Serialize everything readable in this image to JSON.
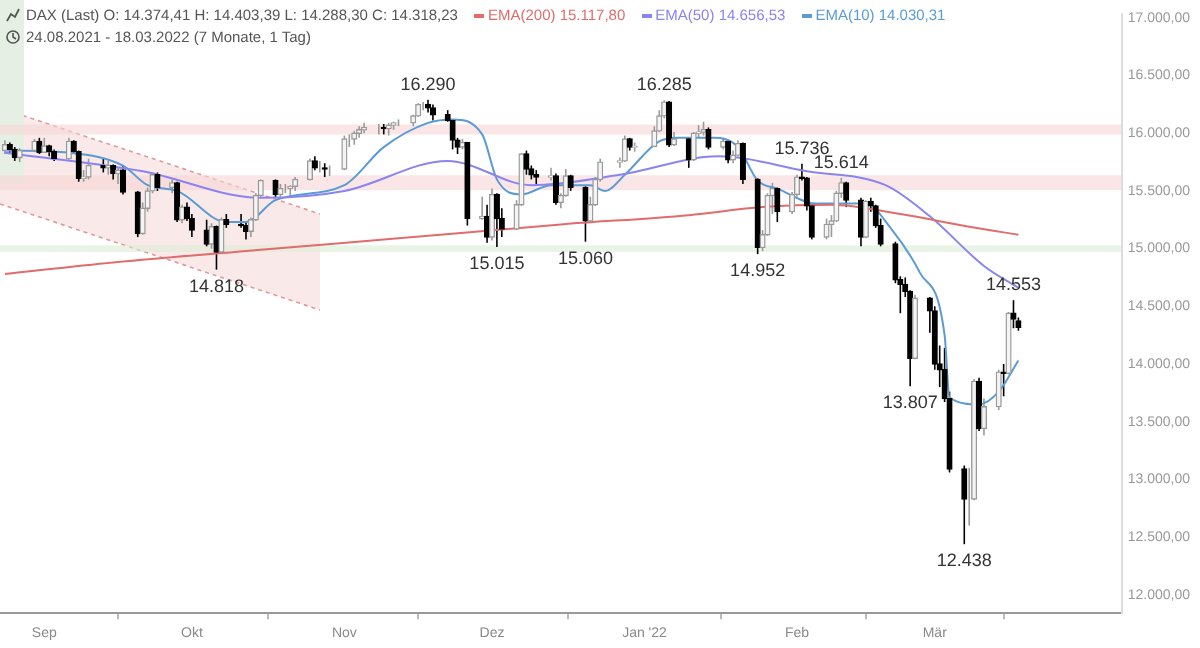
{
  "chart_data": {
    "type": "candlestick",
    "title": "DAX (Last)  O: 14.374,41  H: 14.403,39  L: 14.288,30  C: 14.318,23",
    "subtitle": "24.08.2021 - 18.03.2022   (7 Monate, 1 Tag)",
    "legend": "top",
    "x": [
      "2021-08-24",
      "2021-08-25",
      "2021-08-26",
      "2021-08-27",
      "2021-08-30",
      "2021-08-31",
      "2021-09-01",
      "2021-09-02",
      "2021-09-03",
      "2021-09-06",
      "2021-09-07",
      "2021-09-08",
      "2021-09-09",
      "2021-09-10",
      "2021-09-13",
      "2021-09-14",
      "2021-09-15",
      "2021-09-16",
      "2021-09-17",
      "2021-09-20",
      "2021-09-21",
      "2021-09-22",
      "2021-09-23",
      "2021-09-24",
      "2021-09-27",
      "2021-09-28",
      "2021-09-29",
      "2021-09-30",
      "2021-10-01",
      "2021-10-04",
      "2021-10-05",
      "2021-10-06",
      "2021-10-07",
      "2021-10-08",
      "2021-10-11",
      "2021-10-12",
      "2021-10-13",
      "2021-10-14",
      "2021-10-15",
      "2021-10-18",
      "2021-10-19",
      "2021-10-20",
      "2021-10-21",
      "2021-10-22",
      "2021-10-25",
      "2021-10-26",
      "2021-10-27",
      "2021-10-28",
      "2021-10-29",
      "2021-11-01",
      "2021-11-02",
      "2021-11-03",
      "2021-11-04",
      "2021-11-05",
      "2021-11-08",
      "2021-11-09",
      "2021-11-10",
      "2021-11-11",
      "2021-11-12",
      "2021-11-15",
      "2021-11-16",
      "2021-11-17",
      "2021-11-18",
      "2021-11-19",
      "2021-11-22",
      "2021-11-23",
      "2021-11-24",
      "2021-11-25",
      "2021-11-26",
      "2021-11-29",
      "2021-11-30",
      "2021-12-01",
      "2021-12-02",
      "2021-12-03",
      "2021-12-06",
      "2021-12-07",
      "2021-12-08",
      "2021-12-09",
      "2021-12-10",
      "2021-12-13",
      "2021-12-14",
      "2021-12-15",
      "2021-12-16",
      "2021-12-17",
      "2021-12-20",
      "2021-12-21",
      "2021-12-22",
      "2021-12-23",
      "2021-12-27",
      "2021-12-28",
      "2021-12-29",
      "2021-12-30",
      "2022-01-03",
      "2022-01-04",
      "2022-01-05",
      "2022-01-06",
      "2022-01-07",
      "2022-01-10",
      "2022-01-11",
      "2022-01-12",
      "2022-01-13",
      "2022-01-14",
      "2022-01-17",
      "2022-01-18",
      "2022-01-19",
      "2022-01-20",
      "2022-01-21",
      "2022-01-24",
      "2022-01-25",
      "2022-01-26",
      "2022-01-27",
      "2022-01-28",
      "2022-01-31",
      "2022-02-01",
      "2022-02-02",
      "2022-02-03",
      "2022-02-04",
      "2022-02-07",
      "2022-02-08",
      "2022-02-09",
      "2022-02-10",
      "2022-02-11",
      "2022-02-14",
      "2022-02-15",
      "2022-02-16",
      "2022-02-17",
      "2022-02-18",
      "2022-02-21",
      "2022-02-22",
      "2022-02-23",
      "2022-02-24",
      "2022-02-25",
      "2022-02-28",
      "2022-03-01",
      "2022-03-02",
      "2022-03-03",
      "2022-03-04",
      "2022-03-07",
      "2022-03-08",
      "2022-03-09",
      "2022-03-10",
      "2022-03-11",
      "2022-03-14",
      "2022-03-15",
      "2022-03-16",
      "2022-03-17",
      "2022-03-18"
    ],
    "ohlc": [
      [
        15850,
        15940,
        15820,
        15900
      ],
      [
        15900,
        15920,
        15820,
        15860
      ],
      [
        15860,
        15880,
        15760,
        15790
      ],
      [
        15790,
        15870,
        15750,
        15850
      ],
      [
        15850,
        15950,
        15840,
        15930
      ],
      [
        15930,
        15960,
        15820,
        15835
      ],
      [
        15835,
        15960,
        15830,
        15890
      ],
      [
        15890,
        15900,
        15800,
        15840
      ],
      [
        15840,
        15860,
        15760,
        15780
      ],
      [
        15780,
        15960,
        15770,
        15930
      ],
      [
        15930,
        15940,
        15820,
        15840
      ],
      [
        15840,
        15850,
        15580,
        15610
      ],
      [
        15610,
        15680,
        15580,
        15620
      ],
      [
        15620,
        15780,
        15600,
        15720
      ],
      [
        15720,
        15780,
        15660,
        15700
      ],
      [
        15700,
        15760,
        15640,
        15720
      ],
      [
        15720,
        15730,
        15600,
        15650
      ],
      [
        15650,
        15700,
        15560,
        15680
      ],
      [
        15680,
        15720,
        15470,
        15490
      ],
      [
        15490,
        15500,
        15100,
        15130
      ],
      [
        15130,
        15400,
        15120,
        15350
      ],
      [
        15350,
        15530,
        15320,
        15500
      ],
      [
        15500,
        15660,
        15480,
        15640
      ],
      [
        15640,
        15660,
        15500,
        15530
      ],
      [
        15530,
        15600,
        15480,
        15570
      ],
      [
        15570,
        15580,
        15230,
        15250
      ],
      [
        15250,
        15380,
        15220,
        15360
      ],
      [
        15360,
        15400,
        15240,
        15260
      ],
      [
        15260,
        15300,
        15100,
        15160
      ],
      [
        15160,
        15250,
        15020,
        15040
      ],
      [
        15040,
        15220,
        15000,
        15190
      ],
      [
        15190,
        15200,
        14818,
        14970
      ],
      [
        14970,
        15270,
        14960,
        15250
      ],
      [
        15250,
        15300,
        15180,
        15210
      ],
      [
        15210,
        15300,
        15180,
        15200
      ],
      [
        15200,
        15230,
        15080,
        15150
      ],
      [
        15150,
        15270,
        15100,
        15250
      ],
      [
        15250,
        15480,
        15240,
        15460
      ],
      [
        15460,
        15600,
        15450,
        15590
      ],
      [
        15590,
        15600,
        15440,
        15470
      ],
      [
        15470,
        15560,
        15450,
        15520
      ],
      [
        15520,
        15560,
        15480,
        15520
      ],
      [
        15520,
        15550,
        15440,
        15540
      ],
      [
        15540,
        15620,
        15500,
        15600
      ],
      [
        15600,
        15780,
        15590,
        15760
      ],
      [
        15760,
        15800,
        15680,
        15700
      ],
      [
        15700,
        15760,
        15660,
        15700
      ],
      [
        15700,
        15740,
        15620,
        15690
      ],
      [
        15690,
        15720,
        15630,
        15690
      ],
      [
        15690,
        15980,
        15680,
        15950
      ],
      [
        15950,
        15990,
        15880,
        15950
      ],
      [
        15950,
        16020,
        15900,
        16000
      ],
      [
        16000,
        16060,
        15960,
        16030
      ],
      [
        16030,
        16090,
        16000,
        16050
      ],
      [
        16050,
        16080,
        15990,
        16050
      ],
      [
        16050,
        16080,
        15990,
        16040
      ],
      [
        16040,
        16090,
        15980,
        16070
      ],
      [
        16070,
        16100,
        16030,
        16090
      ],
      [
        16090,
        16120,
        16060,
        16090
      ],
      [
        16090,
        16160,
        16060,
        16150
      ],
      [
        16150,
        16260,
        16140,
        16250
      ],
      [
        16250,
        16270,
        16200,
        16250
      ],
      [
        16250,
        16290,
        16180,
        16220
      ],
      [
        16220,
        16250,
        16110,
        16160
      ],
      [
        16160,
        16200,
        16100,
        16110
      ],
      [
        16110,
        16120,
        15860,
        15940
      ],
      [
        15940,
        15960,
        15820,
        15880
      ],
      [
        15880,
        15950,
        15860,
        15920
      ],
      [
        15920,
        15920,
        15200,
        15260
      ],
      [
        15260,
        15450,
        15250,
        15280
      ],
      [
        15280,
        15380,
        15050,
        15100
      ],
      [
        15100,
        15520,
        15070,
        15470
      ],
      [
        15470,
        15480,
        15015,
        15260
      ],
      [
        15260,
        15350,
        15100,
        15170
      ],
      [
        15170,
        15420,
        15160,
        15380
      ],
      [
        15380,
        15830,
        15370,
        15820
      ],
      [
        15820,
        15850,
        15640,
        15690
      ],
      [
        15690,
        15720,
        15600,
        15640
      ],
      [
        15640,
        15680,
        15560,
        15620
      ],
      [
        15620,
        15700,
        15590,
        15630
      ],
      [
        15630,
        15650,
        15380,
        15400
      ],
      [
        15400,
        15480,
        15350,
        15460
      ],
      [
        15460,
        15690,
        15450,
        15630
      ],
      [
        15630,
        15640,
        15500,
        15530
      ],
      [
        15530,
        15540,
        15060,
        15240
      ],
      [
        15240,
        15450,
        15230,
        15380
      ],
      [
        15380,
        15620,
        15370,
        15600
      ],
      [
        15600,
        15780,
        15580,
        15750
      ],
      [
        15750,
        15790,
        15700,
        15760
      ],
      [
        15760,
        15980,
        15750,
        15950
      ],
      [
        15950,
        15960,
        15850,
        15880
      ],
      [
        15880,
        15920,
        15840,
        15885
      ],
      [
        15885,
        16060,
        15880,
        16020
      ],
      [
        16020,
        16200,
        16010,
        16150
      ],
      [
        16150,
        16285,
        16130,
        16270
      ],
      [
        16270,
        16280,
        15880,
        15900
      ],
      [
        15900,
        16010,
        15890,
        15950
      ],
      [
        15950,
        15960,
        15700,
        15770
      ],
      [
        15770,
        16010,
        15760,
        16000
      ],
      [
        16000,
        16070,
        15960,
        16010
      ],
      [
        16010,
        16100,
        15980,
        16030
      ],
      [
        16030,
        16050,
        15860,
        15880
      ],
      [
        15880,
        15960,
        15860,
        15930
      ],
      [
        15930,
        15940,
        15740,
        15770
      ],
      [
        15770,
        15850,
        15740,
        15810
      ],
      [
        15810,
        15940,
        15800,
        15910
      ],
      [
        15910,
        15920,
        15560,
        15600
      ],
      [
        15600,
        15610,
        14952,
        15010
      ],
      [
        15010,
        15160,
        14980,
        15120
      ],
      [
        15120,
        15480,
        15110,
        15460
      ],
      [
        15460,
        15570,
        15300,
        15520
      ],
      [
        15520,
        15530,
        15230,
        15320
      ],
      [
        15320,
        15490,
        15300,
        15470
      ],
      [
        15470,
        15640,
        15450,
        15620
      ],
      [
        15620,
        15736,
        15590,
        15610
      ],
      [
        15610,
        15620,
        15330,
        15370
      ],
      [
        15370,
        15390,
        15080,
        15100
      ],
      [
        15100,
        15260,
        15080,
        15210
      ],
      [
        15210,
        15290,
        15100,
        15240
      ],
      [
        15240,
        15500,
        15230,
        15480
      ],
      [
        15480,
        15614,
        15440,
        15570
      ],
      [
        15570,
        15580,
        15360,
        15420
      ],
      [
        15420,
        15440,
        15020,
        15100
      ],
      [
        15100,
        15420,
        15090,
        15410
      ],
      [
        15410,
        15440,
        15320,
        15370
      ],
      [
        15370,
        15380,
        15180,
        15200
      ],
      [
        15200,
        15260,
        15020,
        15040
      ],
      [
        15040,
        15060,
        14700,
        14730
      ],
      [
        14730,
        14760,
        14440,
        14690
      ],
      [
        14690,
        14750,
        14580,
        14630
      ],
      [
        14630,
        14640,
        13807,
        14050
      ],
      [
        14050,
        14600,
        14040,
        14570
      ],
      [
        14570,
        14580,
        14270,
        14460
      ],
      [
        14460,
        14500,
        13950,
        14000
      ],
      [
        14000,
        14160,
        13800,
        13950
      ],
      [
        13950,
        14140,
        13670,
        13700
      ],
      [
        13700,
        13760,
        13060,
        13090
      ],
      [
        13090,
        13120,
        12438,
        12830
      ],
      [
        12830,
        13100,
        12600,
        12830
      ],
      [
        12830,
        13870,
        12820,
        13850
      ],
      [
        13850,
        13880,
        13420,
        13440
      ],
      [
        13440,
        13700,
        13380,
        13630
      ],
      [
        13630,
        13950,
        13600,
        13930
      ],
      [
        13930,
        14000,
        13720,
        13920
      ],
      [
        13920,
        14450,
        13910,
        14440
      ],
      [
        14440,
        14553,
        14310,
        14390
      ],
      [
        14374.41,
        14403.39,
        14288.3,
        14318.23
      ]
    ],
    "series": [
      {
        "type": "line",
        "name": "EMA(200) 15.117,80",
        "color": "#e06c6c",
        "x": [
          "2021-08-24",
          "2021-09-15",
          "2021-10-15",
          "2021-11-15",
          "2021-12-15",
          "2022-01-10",
          "2022-01-25",
          "2022-02-08",
          "2022-02-22",
          "2022-03-08",
          "2022-03-18"
        ],
        "values": [
          14780,
          14880,
          14990,
          15100,
          15210,
          15290,
          15360,
          15380,
          15300,
          15190,
          15120
        ]
      },
      {
        "type": "line",
        "name": "EMA(50) 14.656,53",
        "color": "#8a84f0",
        "x": [
          "2021-08-24",
          "2021-09-21",
          "2021-10-15",
          "2021-11-01",
          "2021-11-22",
          "2021-12-09",
          "2021-12-27",
          "2022-01-16",
          "2022-02-03",
          "2022-02-19",
          "2022-02-28",
          "2022-03-11",
          "2022-03-18"
        ],
        "values": [
          15830,
          15670,
          15440,
          15500,
          15760,
          15550,
          15640,
          15800,
          15670,
          15550,
          15280,
          14850,
          14660
        ]
      },
      {
        "type": "line",
        "name": "EMA(10) 14.030,31",
        "color": "#5b9bd5",
        "x": [
          "2021-08-24",
          "2021-09-06",
          "2021-09-17",
          "2021-09-22",
          "2021-09-28",
          "2021-10-08",
          "2021-10-12",
          "2021-10-18",
          "2021-11-01",
          "2021-11-09",
          "2021-11-18",
          "2021-11-23",
          "2021-11-29",
          "2021-12-02",
          "2021-12-07",
          "2021-12-13",
          "2021-12-21",
          "2021-12-24",
          "2021-12-28",
          "2022-01-04",
          "2022-01-08",
          "2022-01-15",
          "2022-01-20",
          "2022-01-24",
          "2022-01-28",
          "2022-02-05",
          "2022-02-15",
          "2022-02-20",
          "2022-02-26",
          "2022-03-03",
          "2022-03-04",
          "2022-03-10",
          "2022-03-14",
          "2022-03-18"
        ],
        "values": [
          15850,
          15830,
          15720,
          15550,
          15500,
          15230,
          15230,
          15420,
          15550,
          15880,
          16090,
          16120,
          15990,
          15600,
          15470,
          15550,
          15550,
          15500,
          15640,
          15930,
          15960,
          15960,
          15880,
          15590,
          15520,
          15390,
          15390,
          15180,
          14790,
          14250,
          13710,
          13650,
          13760,
          14030
        ]
      }
    ],
    "xlim": [
      "2021-08-23",
      "2022-04-08"
    ],
    "xticks": [
      {
        "value": "2021-09-01",
        "label": "Sep"
      },
      {
        "value": "2021-10-01",
        "label": "Okt"
      },
      {
        "value": "2021-11-01",
        "label": "Nov"
      },
      {
        "value": "2021-12-01",
        "label": "Dez"
      },
      {
        "value": "2022-01-01",
        "label": "Jan '22"
      },
      {
        "value": "2022-02-01",
        "label": "Feb"
      },
      {
        "value": "2022-03-01",
        "label": "Mär"
      }
    ],
    "ylim": [
      11840,
      17030
    ],
    "yticks": [
      {
        "value": 12000,
        "label": "12.000,00"
      },
      {
        "value": 12500,
        "label": "12.500,00"
      },
      {
        "value": 13000,
        "label": "13.000,00"
      },
      {
        "value": 13500,
        "label": "13.500,00"
      },
      {
        "value": 14000,
        "label": "14.000,00"
      },
      {
        "value": 14500,
        "label": "14.500,00"
      },
      {
        "value": 15000,
        "label": "15.000,00"
      },
      {
        "value": 15500,
        "label": "15.500,00"
      },
      {
        "value": 16000,
        "label": "16.000,00"
      },
      {
        "value": 16500,
        "label": "16.500,00"
      },
      {
        "value": 17000,
        "label": "17.000,00"
      }
    ],
    "bands": [
      {
        "axis": "y",
        "from": 15990,
        "to": 16075,
        "color": "#f6d5d5"
      },
      {
        "axis": "y",
        "from": 15505,
        "to": 15635,
        "color": "#f6d5d5"
      },
      {
        "axis": "y",
        "from": 14970,
        "to": 15030,
        "color": "#dcecd6"
      }
    ],
    "annotations": [
      {
        "text": "16.290",
        "x": "2021-11-18",
        "y": 16290
      },
      {
        "text": "14.818",
        "x": "2021-10-06",
        "y": 14818
      },
      {
        "text": "15.015",
        "x": "2021-12-02",
        "y": 15015
      },
      {
        "text": "15.060",
        "x": "2021-12-20",
        "y": 15060
      },
      {
        "text": "16.285",
        "x": "2022-01-05",
        "y": 16285
      },
      {
        "text": "14.952",
        "x": "2022-01-24",
        "y": 14952
      },
      {
        "text": "15.736",
        "x": "2022-02-02",
        "y": 15736
      },
      {
        "text": "15.614",
        "x": "2022-02-10",
        "y": 15614
      },
      {
        "text": "13.807",
        "x": "2022-02-24",
        "y": 13807
      },
      {
        "text": "12.438",
        "x": "2022-03-07",
        "y": 12438
      },
      {
        "text": "14.553",
        "x": "2022-03-17",
        "y": 14553
      }
    ]
  }
}
